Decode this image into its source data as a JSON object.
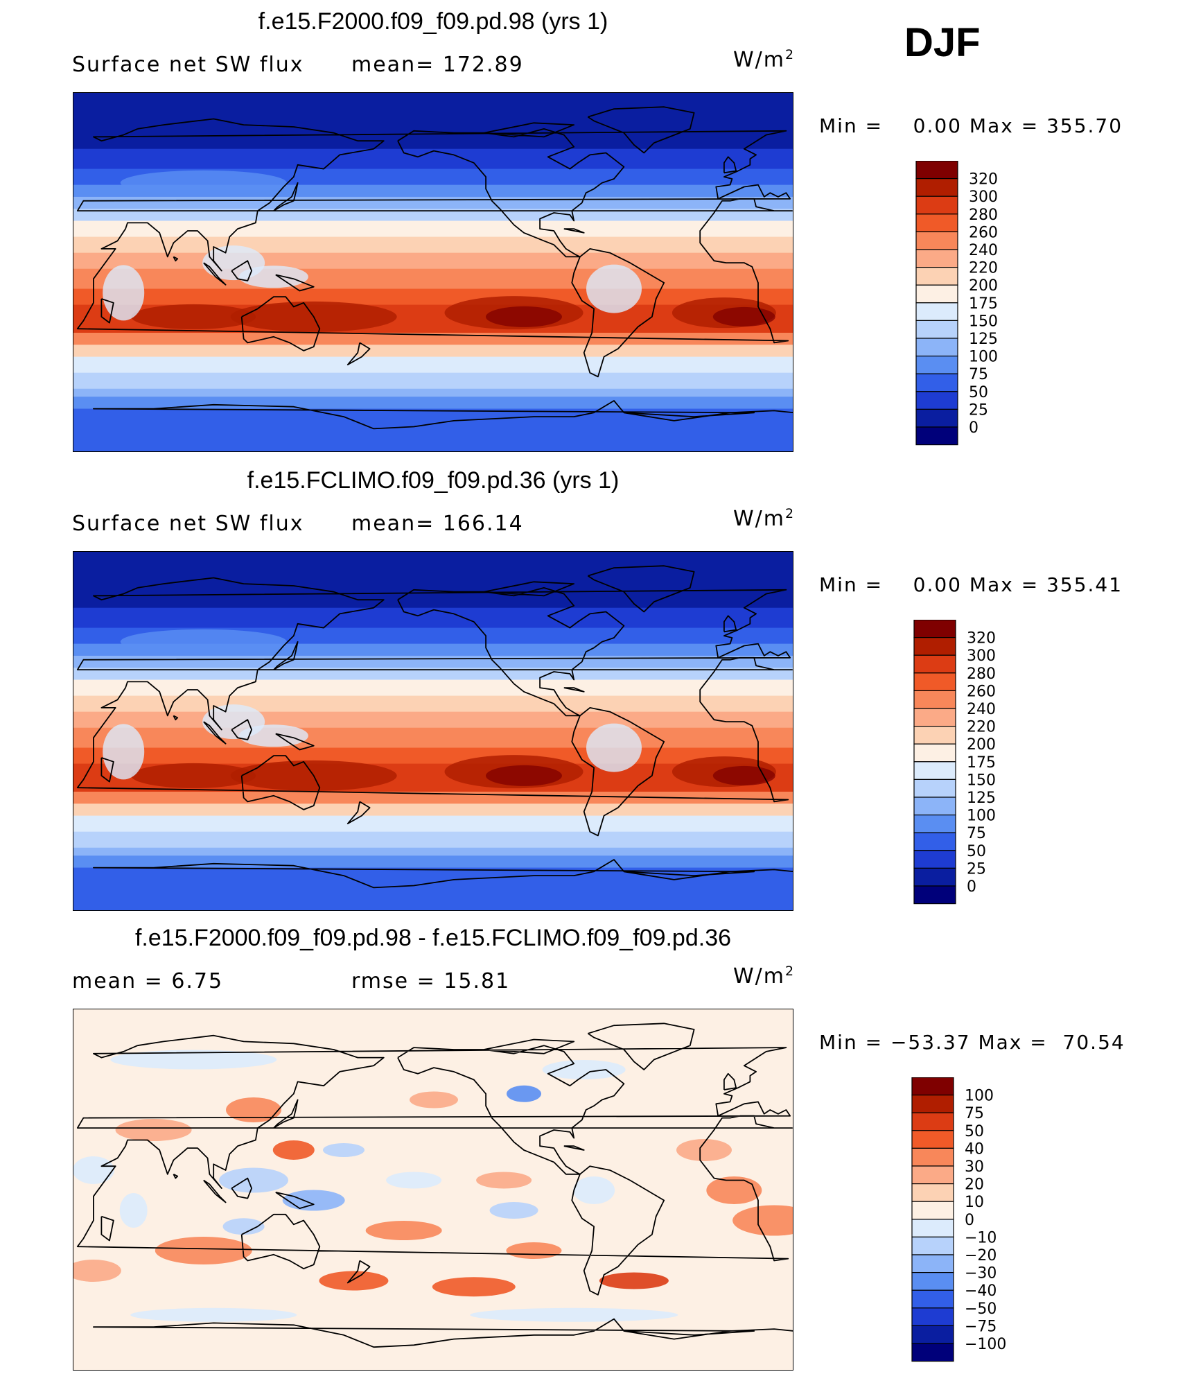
{
  "season": "DJF",
  "chart_data": [
    {
      "type": "heatmap",
      "title": "f.e15.F2000.f09_f09.pd.98 (yrs 1)",
      "variable": "Surface net SW flux",
      "stat_text": "mean= 172.89",
      "units": "W/m",
      "units_exp": "2",
      "min_label": "Min =",
      "min_value": "0.00",
      "max_label": "Max =",
      "max_value": "355.70",
      "levels": [
        "320",
        "300",
        "280",
        "260",
        "240",
        "220",
        "200",
        "175",
        "150",
        "125",
        "100",
        "75",
        "50",
        "25",
        "0"
      ],
      "colors": [
        "#7f0000",
        "#b01e00",
        "#dc3c14",
        "#f05a28",
        "#f8875a",
        "#fbaa87",
        "#fcd2b4",
        "#fdf0e4",
        "#dcebfc",
        "#b7d2fb",
        "#8cb4f8",
        "#5a8ef2",
        "#325fe8",
        "#1e3cd2",
        "#0a1ea0",
        "#00007a"
      ],
      "description_fields": {}
    },
    {
      "type": "heatmap",
      "title": "f.e15.FCLIMO.f09_f09.pd.36 (yrs 1)",
      "variable": "Surface net SW flux",
      "stat_text": "mean= 166.14",
      "units": "W/m",
      "units_exp": "2",
      "min_label": "Min =",
      "min_value": "0.00",
      "max_label": "Max =",
      "max_value": "355.41",
      "levels": [
        "320",
        "300",
        "280",
        "260",
        "240",
        "220",
        "200",
        "175",
        "150",
        "125",
        "100",
        "75",
        "50",
        "25",
        "0"
      ],
      "colors": [
        "#7f0000",
        "#b01e00",
        "#dc3c14",
        "#f05a28",
        "#f8875a",
        "#fbaa87",
        "#fcd2b4",
        "#fdf0e4",
        "#dcebfc",
        "#b7d2fb",
        "#8cb4f8",
        "#5a8ef2",
        "#325fe8",
        "#1e3cd2",
        "#0a1ea0",
        "#00007a"
      ]
    },
    {
      "type": "heatmap",
      "title": "f.e15.F2000.f09_f09.pd.98 - f.e15.FCLIMO.f09_f09.pd.36",
      "variable": "mean =",
      "variable_value": "6.75",
      "stat_text": "rmse =",
      "stat_value": "15.81",
      "units": "W/m",
      "units_exp": "2",
      "min_label": "Min =",
      "min_value": "−53.37",
      "max_label": "Max =",
      "max_value": "70.54",
      "levels": [
        "100",
        "75",
        "50",
        "40",
        "30",
        "20",
        "10",
        "0",
        "−10",
        "−20",
        "−30",
        "−40",
        "−50",
        "−75",
        "−100"
      ],
      "colors": [
        "#7f0000",
        "#b01e00",
        "#dc3c14",
        "#f05a28",
        "#f8875a",
        "#fbaa87",
        "#fcd2b4",
        "#fdf0e4",
        "#dcebfc",
        "#b7d2fb",
        "#8cb4f8",
        "#5a8ef2",
        "#325fe8",
        "#1e3cd2",
        "#0a1ea0",
        "#00007a"
      ]
    }
  ]
}
